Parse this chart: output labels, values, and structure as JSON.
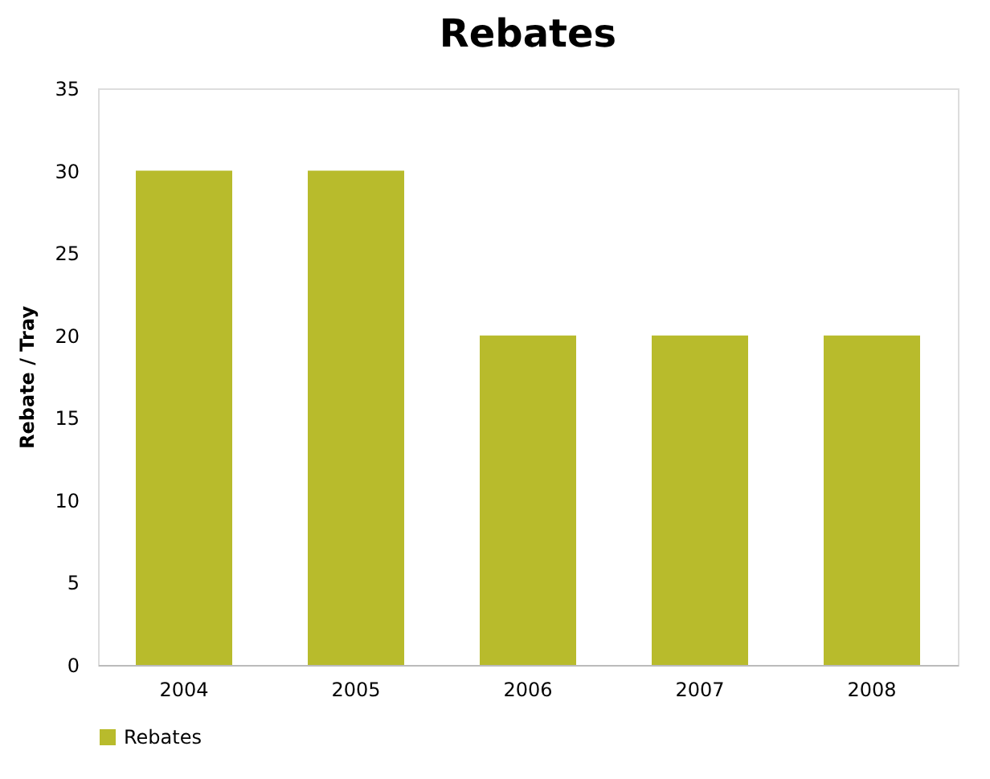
{
  "chart_data": {
    "type": "bar",
    "title": "Rebates",
    "ylabel": "Rebate / Tray",
    "categories": [
      "2004",
      "2005",
      "2006",
      "2007",
      "2008"
    ],
    "series": [
      {
        "name": "Rebates",
        "color": "#b8bb2c",
        "values": [
          30,
          30,
          20,
          20,
          20
        ]
      }
    ],
    "ylim": [
      0,
      35
    ],
    "yticks": [
      0,
      5,
      10,
      15,
      20,
      25,
      30,
      35
    ],
    "grid": false,
    "legend": "bottom"
  }
}
